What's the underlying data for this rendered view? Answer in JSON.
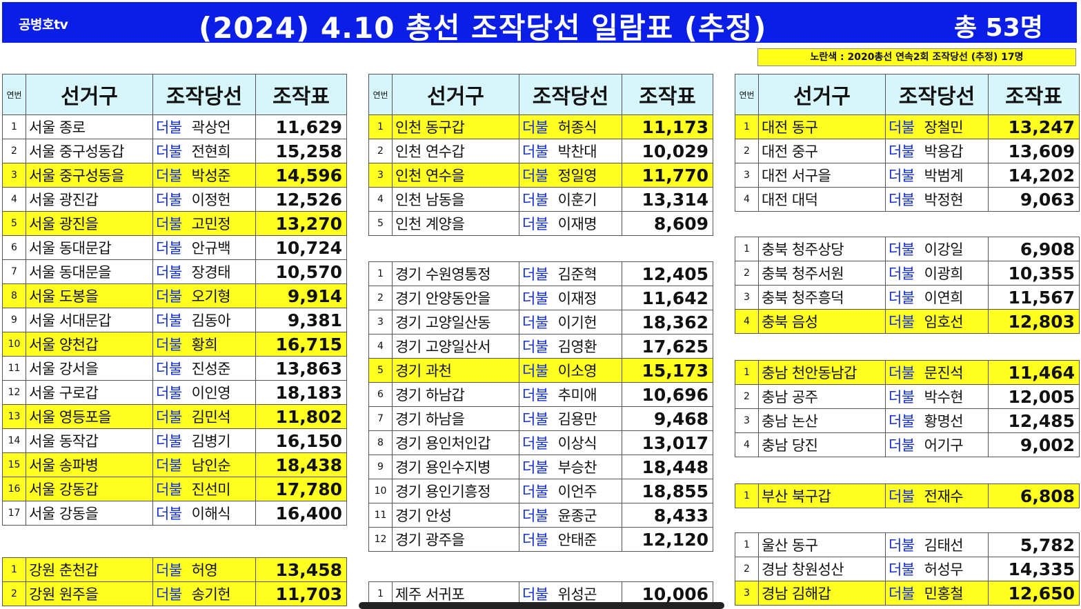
{
  "header": {
    "channel": "공병호tv",
    "title": "(2024)  4.10 총선 조작당선 일람표 (추정)",
    "total": "총 53명",
    "legend": "노란색 : 2020총선 연속2회 조작당선 (추정)  17명",
    "bg_color": "#0a1ee6",
    "highlight_color": "#ffff21",
    "header_cell_color": "#d7f6fb",
    "party_color": "#1530d8"
  },
  "columns": {
    "no": "연번",
    "district": "선거구",
    "candidate": "조작당선",
    "votes": "조작표"
  },
  "left": {
    "seoul": [
      {
        "no": "1",
        "district": "서울 종로",
        "party": "더불",
        "name": "곽상언",
        "votes": "11,629",
        "hl": false
      },
      {
        "no": "2",
        "district": "서울 중구성동갑",
        "party": "더불",
        "name": "전현희",
        "votes": "15,258",
        "hl": false
      },
      {
        "no": "3",
        "district": "서울 중구성동을",
        "party": "더불",
        "name": "박성준",
        "votes": "14,596",
        "hl": true
      },
      {
        "no": "4",
        "district": "서울 광진갑",
        "party": "더불",
        "name": "이정헌",
        "votes": "12,526",
        "hl": false
      },
      {
        "no": "5",
        "district": "서울 광진을",
        "party": "더불",
        "name": "고민정",
        "votes": "13,270",
        "hl": true
      },
      {
        "no": "6",
        "district": "서울 동대문갑",
        "party": "더불",
        "name": "안규백",
        "votes": "10,724",
        "hl": false
      },
      {
        "no": "7",
        "district": "서울 동대문을",
        "party": "더불",
        "name": "장경태",
        "votes": "10,570",
        "hl": false
      },
      {
        "no": "8",
        "district": "서울 도봉을",
        "party": "더불",
        "name": "오기형",
        "votes": "9,914",
        "hl": true
      },
      {
        "no": "9",
        "district": "서울 서대문갑",
        "party": "더불",
        "name": "김동아",
        "votes": "9,381",
        "hl": false
      },
      {
        "no": "10",
        "district": "서울 양천갑",
        "party": "더불",
        "name": "황희",
        "votes": "16,715",
        "hl": true
      },
      {
        "no": "11",
        "district": "서울 강서을",
        "party": "더불",
        "name": "진성준",
        "votes": "13,863",
        "hl": false
      },
      {
        "no": "12",
        "district": "서울 구로갑",
        "party": "더불",
        "name": "이인영",
        "votes": "18,183",
        "hl": false
      },
      {
        "no": "13",
        "district": "서울 영등포을",
        "party": "더불",
        "name": "김민석",
        "votes": "11,802",
        "hl": true
      },
      {
        "no": "14",
        "district": "서울 동작갑",
        "party": "더불",
        "name": "김병기",
        "votes": "16,150",
        "hl": false
      },
      {
        "no": "15",
        "district": "서울 송파병",
        "party": "더불",
        "name": "남인순",
        "votes": "18,438",
        "hl": true
      },
      {
        "no": "16",
        "district": "서울 강동갑",
        "party": "더불",
        "name": "진선미",
        "votes": "17,780",
        "hl": true
      },
      {
        "no": "17",
        "district": "서울 강동을",
        "party": "더불",
        "name": "이해식",
        "votes": "16,400",
        "hl": false
      }
    ],
    "gangwon": [
      {
        "no": "1",
        "district": "강원 춘천갑",
        "party": "더불",
        "name": "허영",
        "votes": "13,458",
        "hl": true
      },
      {
        "no": "2",
        "district": "강원 원주을",
        "party": "더불",
        "name": "송기헌",
        "votes": "11,703",
        "hl": true
      }
    ]
  },
  "middle": {
    "incheon": [
      {
        "no": "1",
        "district": "인천 동구갑",
        "party": "더불",
        "name": "허종식",
        "votes": "11,173",
        "hl": true
      },
      {
        "no": "2",
        "district": "인천 연수갑",
        "party": "더불",
        "name": "박찬대",
        "votes": "10,029",
        "hl": false
      },
      {
        "no": "3",
        "district": "인천 연수을",
        "party": "더불",
        "name": "정일영",
        "votes": "11,770",
        "hl": true
      },
      {
        "no": "4",
        "district": "인천 남동을",
        "party": "더불",
        "name": "이훈기",
        "votes": "13,314",
        "hl": false
      },
      {
        "no": "5",
        "district": "인천 계양을",
        "party": "더불",
        "name": "이재명",
        "votes": "8,609",
        "hl": false
      }
    ],
    "gyeonggi": [
      {
        "no": "1",
        "district": "경기 수원영통정",
        "party": "더불",
        "name": "김준혁",
        "votes": "12,405",
        "hl": false
      },
      {
        "no": "2",
        "district": "경기 안양동안을",
        "party": "더불",
        "name": "이재정",
        "votes": "11,642",
        "hl": false
      },
      {
        "no": "3",
        "district": "경기 고양일산동",
        "party": "더불",
        "name": "이기헌",
        "votes": "18,362",
        "hl": false
      },
      {
        "no": "4",
        "district": "경기 고양일산서",
        "party": "더불",
        "name": "김영환",
        "votes": "17,625",
        "hl": false
      },
      {
        "no": "5",
        "district": "경기 과천",
        "party": "더불",
        "name": "이소영",
        "votes": "15,173",
        "hl": true
      },
      {
        "no": "6",
        "district": "경기 하남갑",
        "party": "더불",
        "name": "추미애",
        "votes": "10,696",
        "hl": false
      },
      {
        "no": "7",
        "district": "경기 하남을",
        "party": "더불",
        "name": "김용만",
        "votes": "9,468",
        "hl": false
      },
      {
        "no": "8",
        "district": "경기 용인처인갑",
        "party": "더불",
        "name": "이상식",
        "votes": "13,017",
        "hl": false
      },
      {
        "no": "9",
        "district": "경기 용인수지병",
        "party": "더불",
        "name": "부승찬",
        "votes": "18,448",
        "hl": false
      },
      {
        "no": "10",
        "district": "경기 용인기흥정",
        "party": "더불",
        "name": "이언주",
        "votes": "18,855",
        "hl": false
      },
      {
        "no": "11",
        "district": "경기 안성",
        "party": "더불",
        "name": "윤종군",
        "votes": "8,433",
        "hl": false
      },
      {
        "no": "12",
        "district": "경기 광주을",
        "party": "더불",
        "name": "안태준",
        "votes": "12,120",
        "hl": false
      }
    ],
    "jeju": [
      {
        "no": "1",
        "district": "제주 서귀포",
        "party": "더불",
        "name": "위성곤",
        "votes": "10,006",
        "hl": false
      }
    ]
  },
  "right": {
    "daejeon": [
      {
        "no": "1",
        "district": "대전 동구",
        "party": "더불",
        "name": "장철민",
        "votes": "13,247",
        "hl": true
      },
      {
        "no": "2",
        "district": "대전 중구",
        "party": "더불",
        "name": "박용갑",
        "votes": "13,609",
        "hl": false
      },
      {
        "no": "3",
        "district": "대전 서구을",
        "party": "더불",
        "name": "박범계",
        "votes": "14,202",
        "hl": false
      },
      {
        "no": "4",
        "district": "대전 대덕",
        "party": "더불",
        "name": "박정현",
        "votes": "9,063",
        "hl": false
      }
    ],
    "chungbuk": [
      {
        "no": "1",
        "district": "충북 청주상당",
        "party": "더불",
        "name": "이강일",
        "votes": "6,908",
        "hl": false
      },
      {
        "no": "2",
        "district": "충북 청주서원",
        "party": "더불",
        "name": "이광희",
        "votes": "10,355",
        "hl": false
      },
      {
        "no": "3",
        "district": "충북 청주흥덕",
        "party": "더불",
        "name": "이연희",
        "votes": "11,567",
        "hl": false
      },
      {
        "no": "4",
        "district": "충북 음성",
        "party": "더불",
        "name": "임호선",
        "votes": "12,803",
        "hl": true
      }
    ],
    "chungnam": [
      {
        "no": "1",
        "district": "충남 천안동남갑",
        "party": "더불",
        "name": "문진석",
        "votes": "11,464",
        "hl": true
      },
      {
        "no": "2",
        "district": "충남 공주",
        "party": "더불",
        "name": "박수현",
        "votes": "12,005",
        "hl": false
      },
      {
        "no": "3",
        "district": "충남 논산",
        "party": "더불",
        "name": "황명선",
        "votes": "12,485",
        "hl": false
      },
      {
        "no": "4",
        "district": "충남 당진",
        "party": "더불",
        "name": "어기구",
        "votes": "9,002",
        "hl": false
      }
    ],
    "busan": [
      {
        "no": "1",
        "district": "부산 북구갑",
        "party": "더불",
        "name": "전재수",
        "votes": "6,808",
        "hl": true
      }
    ],
    "gyeongnam": [
      {
        "no": "1",
        "district": "울산 동구",
        "party": "더불",
        "name": "김태선",
        "votes": "5,782",
        "hl": false
      },
      {
        "no": "2",
        "district": "경남 창원성산",
        "party": "더불",
        "name": "허성무",
        "votes": "14,335",
        "hl": false
      },
      {
        "no": "3",
        "district": "경남 김해갑",
        "party": "더불",
        "name": "민홍철",
        "votes": "12,650",
        "hl": true
      }
    ]
  }
}
